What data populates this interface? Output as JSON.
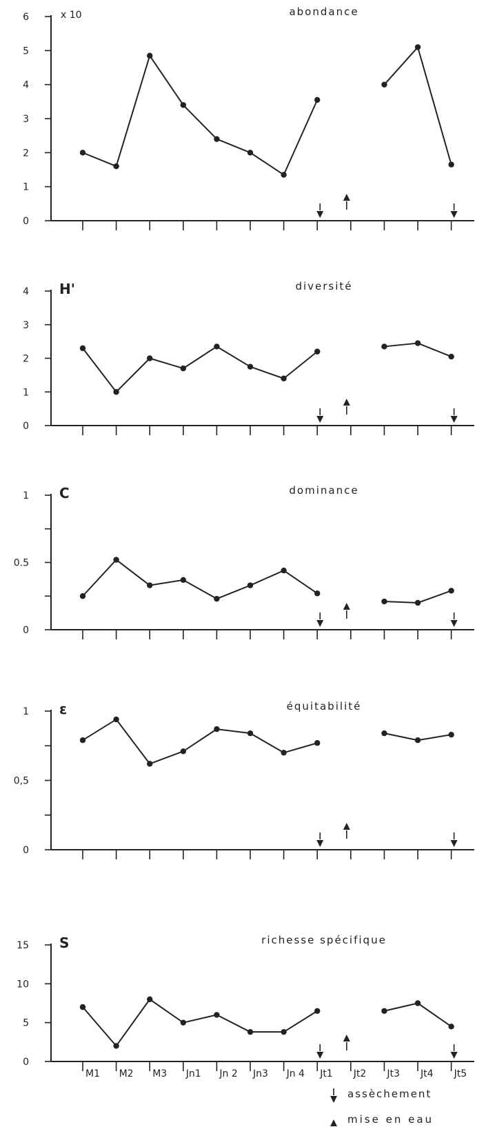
{
  "chart_data": [
    {
      "type": "line",
      "title": "abondance",
      "ylabel": "",
      "y_multiplier": "x 10",
      "ylim": [
        0,
        6
      ],
      "y_ticks": [
        0,
        1,
        2,
        3,
        4,
        5,
        6
      ],
      "y_tick_labels": [
        "0",
        "1",
        "2",
        "3",
        "4",
        "5",
        "6"
      ],
      "values": [
        2.0,
        1.6,
        4.85,
        3.4,
        2.4,
        2.0,
        1.35,
        3.55,
        null,
        4.0,
        5.1,
        1.65
      ]
    },
    {
      "type": "line",
      "title": "diversité",
      "ylabel": "H'",
      "ylim": [
        0,
        4
      ],
      "y_ticks": [
        0,
        1,
        2,
        3,
        4
      ],
      "y_tick_labels": [
        "0",
        "1",
        "2",
        "3",
        "4"
      ],
      "values": [
        2.3,
        1.0,
        2.0,
        1.7,
        2.35,
        1.75,
        1.4,
        2.2,
        null,
        2.35,
        2.45,
        2.05
      ]
    },
    {
      "type": "line",
      "title": "dominance",
      "ylabel": "C",
      "ylim": [
        0,
        1
      ],
      "y_ticks": [
        0,
        0.5,
        1
      ],
      "y_tick_labels": [
        "0",
        "0.5",
        "1"
      ],
      "values": [
        0.25,
        0.52,
        0.33,
        0.37,
        0.23,
        0.33,
        0.44,
        0.27,
        null,
        0.21,
        0.2,
        0.29
      ]
    },
    {
      "type": "line",
      "title": "équitabilité",
      "ylabel": "ε",
      "ylim": [
        0,
        1
      ],
      "y_ticks": [
        0,
        0.5,
        1
      ],
      "y_tick_labels": [
        "0",
        "0,5",
        "1"
      ],
      "values": [
        0.79,
        0.94,
        0.62,
        0.71,
        0.87,
        0.84,
        0.7,
        0.77,
        null,
        0.84,
        0.79,
        0.83
      ]
    },
    {
      "type": "line",
      "title": "richesse spécifique",
      "ylabel": "S",
      "ylim": [
        0,
        15
      ],
      "y_ticks": [
        0,
        5,
        10,
        15
      ],
      "y_tick_labels": [
        "0",
        "5",
        "10",
        "15"
      ],
      "values": [
        7,
        2,
        8,
        5,
        6,
        3.8,
        3.8,
        6.5,
        null,
        6.5,
        7.5,
        4.5
      ]
    }
  ],
  "x_categories": [
    "M1",
    "M2",
    "M3",
    "Jn1",
    "Jn 2",
    "Jn3",
    "Jn 4",
    "Jt1",
    "Jt2",
    "Jt3",
    "Jt4",
    "Jt5"
  ],
  "events": [
    {
      "type": "assechement",
      "between": [
        7,
        8
      ]
    },
    {
      "type": "mise_en_eau",
      "between": [
        8,
        9
      ]
    },
    {
      "type": "assechement",
      "between": [
        11,
        12
      ]
    }
  ],
  "legend": {
    "assechement": "assèchement",
    "mise_en_eau": "mise en eau"
  }
}
